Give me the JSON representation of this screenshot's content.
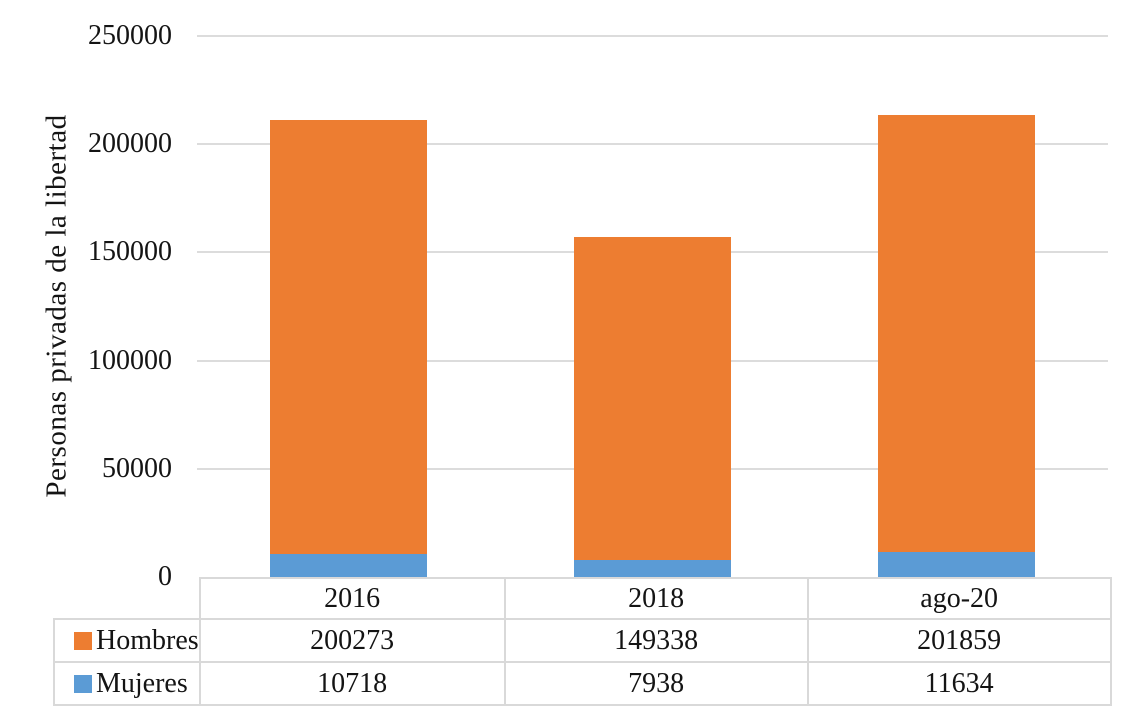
{
  "chart_data": {
    "type": "bar",
    "subtype": "stacked-column",
    "title": "",
    "xlabel": "",
    "ylabel": "Personas privadas de la libertad",
    "categories": [
      "2016",
      "2018",
      "ago-20"
    ],
    "series": [
      {
        "name": "Hombres",
        "color": "#ED7D31",
        "values": [
          200273,
          149338,
          201859
        ]
      },
      {
        "name": "Mujeres",
        "color": "#5B9BD5",
        "values": [
          10718,
          7938,
          11634
        ]
      }
    ],
    "stack_order_bottom_to_top": [
      "Mujeres",
      "Hombres"
    ],
    "ylim": [
      0,
      250000
    ],
    "yticks": [
      0,
      50000,
      100000,
      150000,
      200000,
      250000
    ],
    "grid": "horizontal",
    "gridline_color": "#DCDCDC",
    "table_border_color": "#D9D9D9",
    "legend_position": "data-table-left-column",
    "data_table_shown": true
  }
}
